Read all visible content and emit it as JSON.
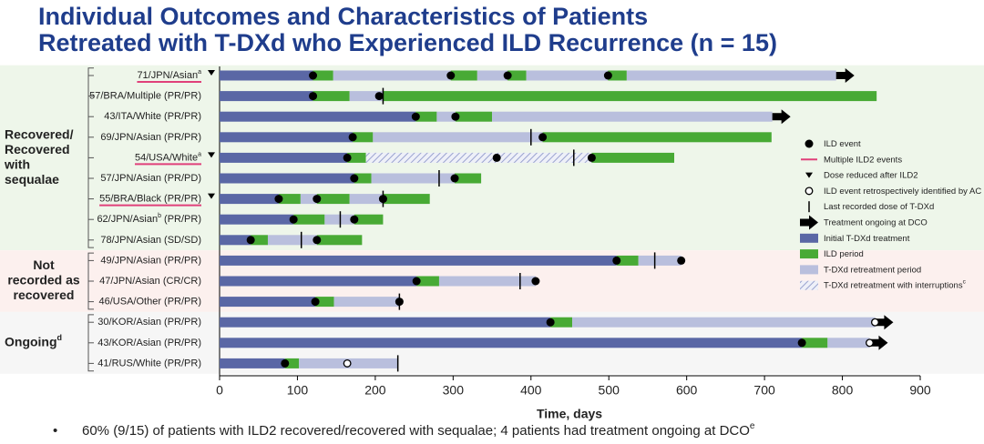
{
  "chart_data": {
    "type": "swimmer",
    "title": [
      "Individual Outcomes and Characteristics of Patients",
      "Retreated with T-DXd who Experienced ILD Recurrence (n = 15)"
    ],
    "xlabel": "Time, days",
    "xlim": [
      0,
      900
    ],
    "xticks": [
      0,
      100,
      200,
      300,
      400,
      500,
      600,
      700,
      800,
      900
    ],
    "legend": [
      {
        "name": "ILD event",
        "kind": "ild_event",
        "color": "#000000"
      },
      {
        "name": "Multiple ILD2 events",
        "kind": "multiple_ild2",
        "color": "#e0407a"
      },
      {
        "name": "Dose reduced after ILD2",
        "kind": "dose_reduced",
        "color": "#000000"
      },
      {
        "name": "ILD event retrospectively identified by AC",
        "kind": "ild_retro",
        "color": "#000000"
      },
      {
        "name": "Last recorded dose of T-DXd",
        "kind": "last_dose",
        "color": "#000000"
      },
      {
        "name": "Treatment ongoing at DCO",
        "kind": "ongoing",
        "color": "#000000"
      },
      {
        "name": "Initial T-DXd treatment",
        "kind": "initial",
        "color": "#5a67a5"
      },
      {
        "name": "ILD period",
        "kind": "ild",
        "color": "#48aa35"
      },
      {
        "name": "T-DXd retreatment period",
        "kind": "retreat",
        "color": "#b9bfdd"
      },
      {
        "name": "T-DXd retreatment with interruptions",
        "sup": "c",
        "kind": "interrupted",
        "color": "#9aa3cf"
      }
    ],
    "groups": [
      {
        "label": [
          "Recovered/",
          "Recovered",
          "with",
          "sequalae"
        ],
        "color": "#eef6ea",
        "rows": [
          {
            "label": "71/JPN/Asian",
            "sup": "a",
            "underline": true,
            "dose_reduced": true,
            "ongoing": true,
            "segments": [
              {
                "kind": "initial",
                "start": 0,
                "end": 120
              },
              {
                "kind": "ild",
                "start": 120,
                "end": 146
              },
              {
                "kind": "retreat",
                "start": 146,
                "end": 297
              },
              {
                "kind": "ild",
                "start": 297,
                "end": 331
              },
              {
                "kind": "retreat",
                "start": 331,
                "end": 370
              },
              {
                "kind": "ild",
                "start": 370,
                "end": 394
              },
              {
                "kind": "retreat",
                "start": 394,
                "end": 499
              },
              {
                "kind": "ild",
                "start": 499,
                "end": 523
              },
              {
                "kind": "retreat",
                "start": 523,
                "end": 792
              }
            ],
            "ild_events": [
              120,
              297,
              370,
              499
            ]
          },
          {
            "label": "57/BRA/Multiple (PR/PR)",
            "last_dose": 210,
            "segments": [
              {
                "kind": "initial",
                "start": 0,
                "end": 120
              },
              {
                "kind": "ild",
                "start": 120,
                "end": 167
              },
              {
                "kind": "retreat",
                "start": 167,
                "end": 210
              },
              {
                "kind": "ild",
                "start": 210,
                "end": 844
              }
            ],
            "ild_events": [
              120,
              205
            ]
          },
          {
            "label": "43/ITA/White (PR/PR)",
            "ongoing": true,
            "segments": [
              {
                "kind": "initial",
                "start": 0,
                "end": 252
              },
              {
                "kind": "ild",
                "start": 252,
                "end": 279
              },
              {
                "kind": "retreat",
                "start": 279,
                "end": 303
              },
              {
                "kind": "ild",
                "start": 303,
                "end": 350
              },
              {
                "kind": "retreat",
                "start": 350,
                "end": 710
              }
            ],
            "ild_events": [
              252,
              303
            ]
          },
          {
            "label": "69/JPN/Asian (PR/PR)",
            "last_dose": 400,
            "segments": [
              {
                "kind": "initial",
                "start": 0,
                "end": 171
              },
              {
                "kind": "ild",
                "start": 171,
                "end": 197
              },
              {
                "kind": "retreat",
                "start": 197,
                "end": 415
              },
              {
                "kind": "ild",
                "start": 415,
                "end": 709
              }
            ],
            "ild_events": [
              171,
              415
            ]
          },
          {
            "label": "54/USA/White",
            "sup": "a",
            "underline": true,
            "dose_reduced": true,
            "last_dose": 455,
            "segments": [
              {
                "kind": "initial",
                "start": 0,
                "end": 164
              },
              {
                "kind": "ild",
                "start": 164,
                "end": 188
              },
              {
                "kind": "interrupted",
                "start": 188,
                "end": 478
              },
              {
                "kind": "ild",
                "start": 478,
                "end": 584
              }
            ],
            "ild_events": [
              164,
              356,
              478
            ]
          },
          {
            "label": "57/JPN/Asian (PR/PD)",
            "last_dose": 282,
            "segments": [
              {
                "kind": "initial",
                "start": 0,
                "end": 173
              },
              {
                "kind": "ild",
                "start": 173,
                "end": 195
              },
              {
                "kind": "retreat",
                "start": 195,
                "end": 302
              },
              {
                "kind": "ild",
                "start": 302,
                "end": 336
              }
            ],
            "ild_events": [
              173,
              302
            ]
          },
          {
            "label": "55/BRA/Black (PR/PR)",
            "underline": true,
            "dose_reduced": true,
            "last_dose": 210,
            "segments": [
              {
                "kind": "initial",
                "start": 0,
                "end": 76
              },
              {
                "kind": "ild",
                "start": 76,
                "end": 104
              },
              {
                "kind": "retreat",
                "start": 104,
                "end": 125
              },
              {
                "kind": "ild",
                "start": 125,
                "end": 167
              },
              {
                "kind": "retreat",
                "start": 167,
                "end": 210
              },
              {
                "kind": "ild",
                "start": 210,
                "end": 270
              }
            ],
            "ild_events": [
              76,
              125,
              210
            ]
          },
          {
            "label": "62/JPN/Asian",
            "sup": "b",
            "label_end": " (PR/PR)",
            "last_dose": 155,
            "segments": [
              {
                "kind": "initial",
                "start": 0,
                "end": 95
              },
              {
                "kind": "ild",
                "start": 95,
                "end": 135
              },
              {
                "kind": "retreat",
                "start": 135,
                "end": 173
              },
              {
                "kind": "ild",
                "start": 173,
                "end": 210
              }
            ],
            "ild_events": [
              95,
              173
            ]
          },
          {
            "label": "78/JPN/Asian (SD/SD)",
            "last_dose": 105,
            "segments": [
              {
                "kind": "initial",
                "start": 0,
                "end": 40
              },
              {
                "kind": "ild",
                "start": 40,
                "end": 62
              },
              {
                "kind": "retreat",
                "start": 62,
                "end": 125
              },
              {
                "kind": "ild",
                "start": 125,
                "end": 183
              }
            ],
            "ild_events": [
              40,
              125
            ]
          }
        ]
      },
      {
        "label": [
          "Not",
          "recorded as",
          "recovered"
        ],
        "color": "#fcf0ee",
        "rows": [
          {
            "label": "49/JPN/Asian (PR/PR)",
            "last_dose": 559,
            "segments": [
              {
                "kind": "initial",
                "start": 0,
                "end": 510
              },
              {
                "kind": "ild",
                "start": 510,
                "end": 538
              },
              {
                "kind": "retreat",
                "start": 538,
                "end": 593
              }
            ],
            "ild_events": [
              510,
              593
            ]
          },
          {
            "label": "47/JPN/Asian (CR/CR)",
            "last_dose": 386,
            "segments": [
              {
                "kind": "initial",
                "start": 0,
                "end": 253
              },
              {
                "kind": "ild",
                "start": 253,
                "end": 282
              },
              {
                "kind": "retreat",
                "start": 282,
                "end": 406
              }
            ],
            "ild_events": [
              253,
              406
            ]
          },
          {
            "label": "46/USA/Other (PR/PR)",
            "last_dose": 231,
            "segments": [
              {
                "kind": "initial",
                "start": 0,
                "end": 123
              },
              {
                "kind": "ild",
                "start": 123,
                "end": 147
              },
              {
                "kind": "retreat",
                "start": 147,
                "end": 231
              }
            ],
            "ild_events": [
              123,
              231
            ]
          }
        ]
      },
      {
        "label": [
          "Ongoing"
        ],
        "sup": "d",
        "color": "#f6f6f6",
        "rows": [
          {
            "label": "30/KOR/Asian (PR/PR)",
            "ongoing": true,
            "segments": [
              {
                "kind": "initial",
                "start": 0,
                "end": 425
              },
              {
                "kind": "ild",
                "start": 425,
                "end": 453
              },
              {
                "kind": "retreat",
                "start": 453,
                "end": 842
              }
            ],
            "ild_events": [
              425
            ],
            "ild_retro": [
              842
            ]
          },
          {
            "label": "43/KOR/Asian (PR/PR)",
            "ongoing": true,
            "segments": [
              {
                "kind": "initial",
                "start": 0,
                "end": 748
              },
              {
                "kind": "ild",
                "start": 748,
                "end": 781
              },
              {
                "kind": "retreat",
                "start": 781,
                "end": 835
              }
            ],
            "ild_events": [
              748
            ],
            "ild_retro": [
              835
            ]
          },
          {
            "label": "41/RUS/White (PR/PR)",
            "last_dose": 229,
            "segments": [
              {
                "kind": "initial",
                "start": 0,
                "end": 84
              },
              {
                "kind": "ild",
                "start": 84,
                "end": 102
              },
              {
                "kind": "retreat",
                "start": 102,
                "end": 229
              }
            ],
            "ild_events": [
              84
            ],
            "ild_retro": [
              164
            ]
          }
        ]
      }
    ],
    "footnote": "60% (9/15) of patients with ILD2 recovered/recovered with sequalae; 4 patients had treatment ongoing at DCO",
    "footnote_sup": "e"
  }
}
